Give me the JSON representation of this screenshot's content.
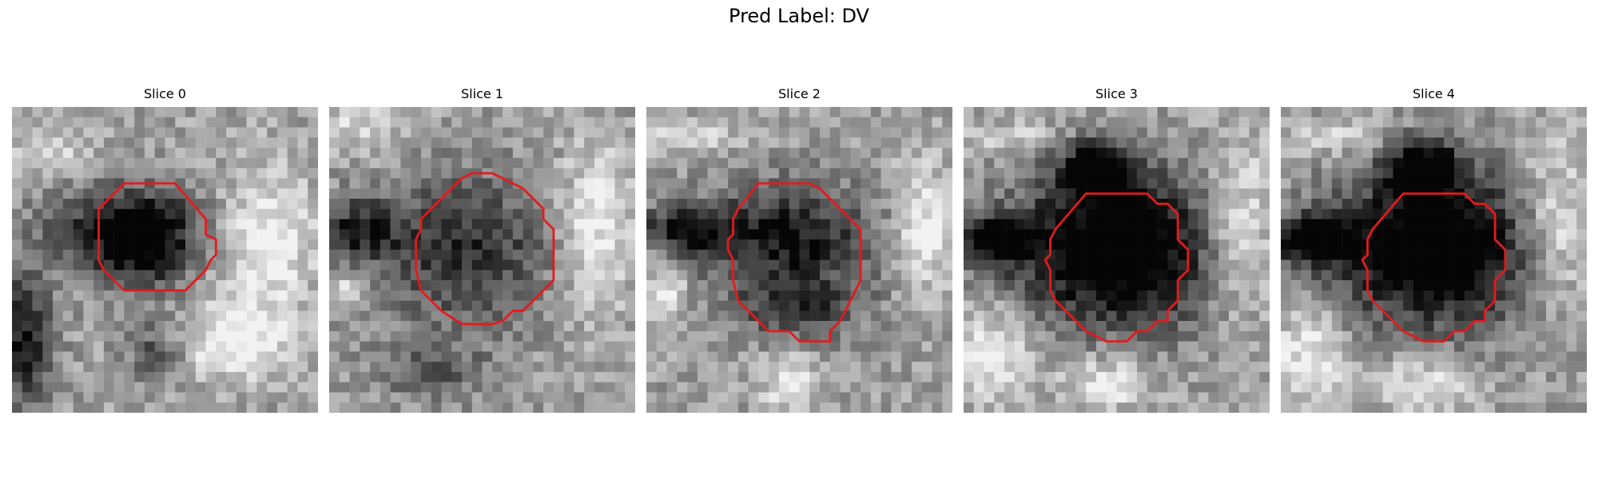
{
  "figure": {
    "title": "Pred Label: DV"
  },
  "panels": [
    {
      "title": "Slice 0",
      "variant": 0,
      "contour_color": "#e41a1c"
    },
    {
      "title": "Slice 1",
      "variant": 1,
      "contour_color": "#e41a1c"
    },
    {
      "title": "Slice 2",
      "variant": 2,
      "contour_color": "#e41a1c"
    },
    {
      "title": "Slice 3",
      "variant": 3,
      "contour_color": "#e41a1c"
    },
    {
      "title": "Slice 4",
      "variant": 4,
      "contour_color": "#e41a1c"
    }
  ]
}
